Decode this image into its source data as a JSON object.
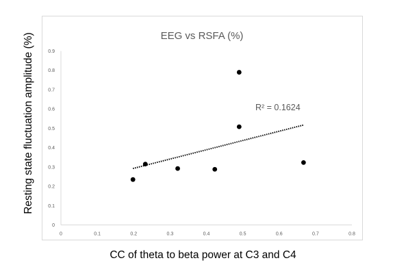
{
  "chart_data": {
    "type": "scatter",
    "title": "EEG vs RSFA (%)",
    "xlabel": "CC of theta to beta power at C3 and C4",
    "ylabel": "Resting state fluctuation amplitude (%)",
    "xlim": [
      0,
      0.8
    ],
    "ylim": [
      0,
      0.9
    ],
    "x_ticks": [
      0,
      0.1,
      0.2,
      0.3,
      0.4,
      0.5,
      0.6,
      0.7,
      0.8
    ],
    "x_tick_labels": [
      "0",
      "0.1",
      "0.2",
      "0.3",
      "0.4",
      "0.5",
      "0.6",
      "0.7",
      "0.8"
    ],
    "y_ticks": [
      0,
      0.1,
      0.2,
      0.3,
      0.4,
      0.5,
      0.6,
      0.7,
      0.8,
      0.9
    ],
    "y_tick_labels": [
      "0",
      "0.1",
      "0.2",
      "0.3",
      "0.4",
      "0.5",
      "0.6",
      "0.7",
      "0.8",
      "0.9"
    ],
    "grid": false,
    "series": [
      {
        "x": [
          0.198,
          0.232,
          0.321,
          0.423,
          0.49,
          0.49,
          0.667
        ],
        "y": [
          0.235,
          0.315,
          0.292,
          0.288,
          0.508,
          0.79,
          0.323
        ]
      }
    ],
    "trendline": {
      "type": "linear",
      "x": [
        0.198,
        0.667
      ],
      "y": [
        0.292,
        0.517
      ],
      "style": "dotted",
      "label": "R² = 0.1624"
    },
    "colors": {
      "markers": "#000000",
      "trendline": "#000000",
      "axis_lines": "#d9d9d9",
      "tick_labels": "#595959",
      "title": "#595959",
      "frame": "#d9d9d9"
    }
  }
}
